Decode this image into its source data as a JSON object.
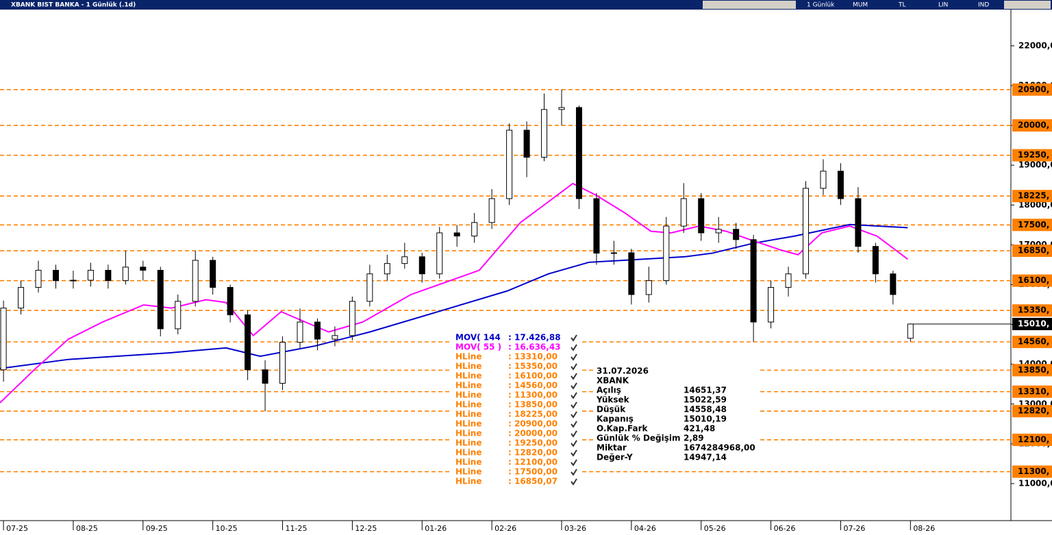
{
  "window": {
    "title": "XBANK BIST BANKA - 1 Günlük (.1d)",
    "toolbar": [
      "1 Günlük",
      "MUM",
      "TL",
      "LIN",
      "IND"
    ]
  },
  "chart_data": {
    "type": "candlestick",
    "xlim": [
      -0.05,
      14.44
    ],
    "ylim": [
      10070,
      22910
    ],
    "xticks": [
      {
        "value": 0,
        "label": "07-25"
      },
      {
        "value": 1,
        "label": "08-25"
      },
      {
        "value": 2,
        "label": "09-25"
      },
      {
        "value": 3,
        "label": "10-25"
      },
      {
        "value": 4,
        "label": "11-25"
      },
      {
        "value": 5,
        "label": "12-25"
      },
      {
        "value": 6,
        "label": "01-26"
      },
      {
        "value": 7,
        "label": "02-26"
      },
      {
        "value": 8,
        "label": "03-26"
      },
      {
        "value": 9,
        "label": "04-26"
      },
      {
        "value": 10,
        "label": "05-26"
      },
      {
        "value": 11,
        "label": "06-26"
      },
      {
        "value": 12,
        "label": "07-26"
      },
      {
        "value": 13,
        "label": "08-26"
      }
    ],
    "yticks": [
      {
        "value": 11000,
        "label": "11000,0"
      },
      {
        "value": 12000,
        "label": "12000,0"
      },
      {
        "value": 13000,
        "label": "13000,0"
      },
      {
        "value": 14000,
        "label": "14000,0"
      },
      {
        "value": 15000,
        "label": "15000,0"
      },
      {
        "value": 16000,
        "label": "16000,0"
      },
      {
        "value": 17000,
        "label": "17000,0"
      },
      {
        "value": 18000,
        "label": "18000,0"
      },
      {
        "value": 19000,
        "label": "19000,0"
      },
      {
        "value": 20000,
        "label": "20000,0"
      },
      {
        "value": 21000,
        "label": "21000,0"
      },
      {
        "value": 22000,
        "label": "22000,0"
      }
    ],
    "candles": {
      "up_color": "#ffffff",
      "down_color": "#000000",
      "x": [
        0,
        0.25,
        0.5,
        0.75,
        1,
        1.25,
        1.5,
        1.75,
        2,
        2.25,
        2.5,
        2.75,
        3,
        3.25,
        3.5,
        3.75,
        4,
        4.25,
        4.5,
        4.75,
        5,
        5.25,
        5.5,
        5.75,
        6,
        6.25,
        6.5,
        6.75,
        7,
        7.25,
        7.5,
        7.75,
        8,
        8.25,
        8.5,
        8.75,
        9,
        9.25,
        9.5,
        9.75,
        10,
        10.25,
        10.5,
        10.75,
        11,
        11.25,
        11.5,
        11.75,
        12,
        12.25,
        12.5,
        12.75,
        13
      ],
      "open": [
        13860,
        15410,
        15930,
        16360,
        16100,
        16110,
        16360,
        16100,
        16440,
        16360,
        14890,
        15580,
        16610,
        15930,
        15240,
        13860,
        13520,
        14550,
        15060,
        14630,
        14720,
        15580,
        16270,
        16530,
        16700,
        16270,
        17300,
        17220,
        17560,
        18160,
        19880,
        19200,
        20400,
        20450,
        18160,
        16790,
        16800,
        15750,
        16100,
        17470,
        18160,
        17300,
        17390,
        17130,
        15060,
        15930,
        16270,
        18420,
        18850,
        18160,
        16960,
        16270,
        14651.37
      ],
      "high": [
        15600,
        16100,
        16600,
        16500,
        16350,
        16550,
        16500,
        16850,
        16600,
        16450,
        15750,
        16850,
        16700,
        16000,
        15350,
        14100,
        14700,
        15400,
        15150,
        14950,
        15700,
        16500,
        16750,
        17050,
        16800,
        17450,
        17500,
        17800,
        18400,
        20050,
        20100,
        20800,
        20900,
        20500,
        18300,
        17100,
        16900,
        16450,
        17700,
        18550,
        18300,
        17700,
        17550,
        17250,
        16100,
        16450,
        18600,
        19150,
        19050,
        18450,
        17050,
        16350,
        15022.59
      ],
      "low": [
        13560,
        15250,
        15800,
        15900,
        15900,
        15950,
        15900,
        16000,
        16100,
        14700,
        14750,
        15450,
        15750,
        15050,
        13600,
        12820,
        13350,
        14400,
        14350,
        14450,
        14600,
        15450,
        16100,
        16400,
        16050,
        16150,
        16950,
        17050,
        17400,
        18000,
        18700,
        19100,
        20000,
        17900,
        16500,
        16500,
        15500,
        15550,
        16000,
        17300,
        17100,
        17050,
        16900,
        14560,
        14900,
        15700,
        16150,
        18250,
        18000,
        16800,
        16050,
        15500,
        14558.48
      ],
      "close": [
        15410,
        15930,
        16360,
        16100,
        16110,
        16360,
        16100,
        16440,
        16360,
        14890,
        15580,
        16610,
        15930,
        15240,
        13860,
        13520,
        14550,
        15060,
        14630,
        14720,
        15580,
        16270,
        16530,
        16700,
        16270,
        17300,
        17220,
        17560,
        18160,
        19880,
        19200,
        20400,
        20450,
        18160,
        16790,
        16800,
        15750,
        16100,
        17470,
        18160,
        17300,
        17390,
        17130,
        15060,
        15930,
        16270,
        18420,
        18850,
        18160,
        16960,
        16270,
        15750,
        15010.19
      ]
    },
    "series": [
      {
        "name": "MOV( 144",
        "legend_value": ": 17.426,88",
        "color": "#0000cc",
        "x": [
          -0.05,
          0.93,
          2.41,
          3.19,
          3.68,
          4.47,
          5.25,
          6.23,
          7.22,
          7.81,
          8.39,
          9.77,
          10.16,
          10.75,
          11.34,
          12.13,
          12.96
        ],
        "values": [
          13890,
          14120,
          14290,
          14410,
          14200,
          14460,
          14810,
          15320,
          15840,
          16270,
          16560,
          16700,
          16790,
          17040,
          17220,
          17510,
          17430
        ]
      },
      {
        "name": "MOV( 55 )",
        "legend_value": ": 16.636,43",
        "color": "#ff00ff",
        "x": [
          -0.05,
          0.44,
          0.93,
          1.42,
          2.01,
          2.41,
          2.9,
          3.19,
          3.58,
          3.98,
          4.66,
          5.15,
          5.84,
          6.82,
          7.41,
          7.81,
          8.16,
          8.49,
          8.89,
          9.28,
          9.57,
          9.97,
          10.36,
          10.75,
          11.14,
          11.39,
          11.73,
          12.13,
          12.52,
          12.96
        ],
        "values": [
          13030,
          13860,
          14630,
          15060,
          15490,
          15410,
          15620,
          15550,
          14720,
          15320,
          14810,
          15060,
          15750,
          16360,
          17560,
          18080,
          18540,
          18250,
          17820,
          17340,
          17300,
          17470,
          17340,
          17100,
          16870,
          16750,
          17300,
          17470,
          17220,
          16640
        ]
      }
    ],
    "hlines": {
      "name": "HLine",
      "color": "#ff8000",
      "values": [
        13310,
        15350,
        16100,
        14560,
        11300,
        13850,
        18225,
        20900,
        20000,
        19250,
        12820,
        12100,
        17500,
        16850.07
      ],
      "value_labels": [
        ": 13310,00",
        ": 15350,00",
        ": 16100,00",
        ": 14560,00",
        ": 11300,00",
        ": 13850,00",
        ": 18225,00",
        ": 20900,00",
        ": 20000,00",
        ": 19250,00",
        ": 12820,00",
        ": 12100,00",
        ": 17500,00",
        ": 16850,07"
      ],
      "axis_labels": [
        "13310,",
        "15350,",
        "16100,",
        "14560,",
        "11300,",
        "13850,",
        "18225,",
        "20900,",
        "20000,",
        "19250,",
        "12820,",
        "12100,",
        "17500,",
        "16850,"
      ]
    },
    "last_price": {
      "value": 15010.19,
      "label": "15010,"
    }
  },
  "info": {
    "date": "31.07.2026",
    "symbol": "XBANK",
    "rows": [
      [
        "Açılış",
        "14651,37"
      ],
      [
        "Yüksek",
        "15022,59"
      ],
      [
        "Düşük",
        "14558,48"
      ],
      [
        "Kapanış",
        "15010,19"
      ],
      [
        "O.Kap.Fark",
        "421,48"
      ],
      [
        "Günlük % Değişim",
        "2,89"
      ],
      [
        "Miktar",
        "1674284968,00"
      ],
      [
        "Değer-Y",
        "14947,14"
      ]
    ]
  }
}
